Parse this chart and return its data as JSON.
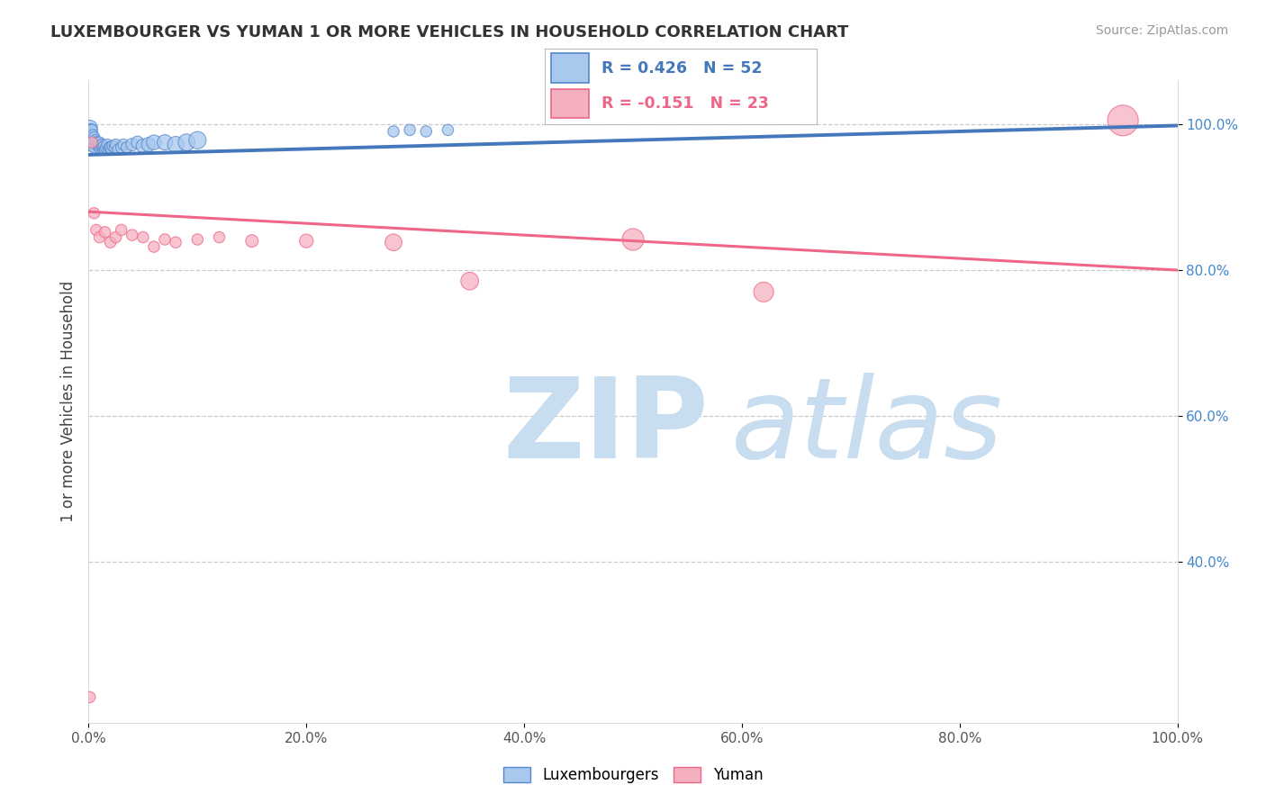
{
  "title": "LUXEMBOURGER VS YUMAN 1 OR MORE VEHICLES IN HOUSEHOLD CORRELATION CHART",
  "source_text": "Source: ZipAtlas.com",
  "ylabel": "1 or more Vehicles in Household",
  "xlim": [
    0.0,
    1.0
  ],
  "ylim": [
    0.18,
    1.06
  ],
  "xticks": [
    0.0,
    0.2,
    0.4,
    0.6,
    0.8,
    1.0
  ],
  "yticks": [
    0.4,
    0.6,
    0.8,
    1.0
  ],
  "ytick_labels": [
    "40.0%",
    "60.0%",
    "80.0%",
    "100.0%"
  ],
  "xtick_labels": [
    "0.0%",
    "20.0%",
    "40.0%",
    "60.0%",
    "80.0%",
    "100.0%"
  ],
  "blue_R": 0.426,
  "blue_N": 52,
  "pink_R": -0.151,
  "pink_N": 23,
  "blue_fill_color": "#A8C8EE",
  "pink_fill_color": "#F5B0C0",
  "blue_edge_color": "#5588CC",
  "pink_edge_color": "#EE6688",
  "blue_line_color": "#4477BB",
  "pink_line_color": "#EE6688",
  "ytick_color": "#4488CC",
  "legend_labels": [
    "Luxembourgers",
    "Yuman"
  ],
  "blue_scatter_x": [
    0.001,
    0.001,
    0.002,
    0.002,
    0.002,
    0.003,
    0.003,
    0.003,
    0.003,
    0.004,
    0.004,
    0.004,
    0.005,
    0.005,
    0.006,
    0.006,
    0.007,
    0.008,
    0.009,
    0.01,
    0.01,
    0.011,
    0.012,
    0.013,
    0.014,
    0.015,
    0.016,
    0.017,
    0.018,
    0.019,
    0.02,
    0.021,
    0.022,
    0.024,
    0.025,
    0.027,
    0.03,
    0.032,
    0.035,
    0.04,
    0.045,
    0.05,
    0.055,
    0.06,
    0.07,
    0.08,
    0.09,
    0.1,
    0.28,
    0.295,
    0.31,
    0.33
  ],
  "blue_scatter_y": [
    0.995,
    0.988,
    0.985,
    0.978,
    0.992,
    0.975,
    0.98,
    0.992,
    0.97,
    0.978,
    0.985,
    0.97,
    0.982,
    0.968,
    0.978,
    0.975,
    0.972,
    0.975,
    0.97,
    0.968,
    0.975,
    0.97,
    0.972,
    0.968,
    0.97,
    0.965,
    0.968,
    0.972,
    0.965,
    0.968,
    0.968,
    0.965,
    0.97,
    0.968,
    0.972,
    0.965,
    0.968,
    0.972,
    0.968,
    0.972,
    0.975,
    0.97,
    0.972,
    0.975,
    0.975,
    0.972,
    0.975,
    0.978,
    0.99,
    0.992,
    0.99,
    0.992
  ],
  "blue_scatter_size": [
    150,
    120,
    120,
    100,
    100,
    100,
    100,
    80,
    80,
    80,
    80,
    80,
    80,
    80,
    80,
    80,
    80,
    80,
    80,
    80,
    80,
    80,
    80,
    80,
    80,
    80,
    80,
    80,
    80,
    80,
    80,
    80,
    80,
    80,
    80,
    80,
    80,
    80,
    80,
    100,
    100,
    120,
    130,
    140,
    150,
    170,
    180,
    190,
    80,
    80,
    80,
    80
  ],
  "pink_scatter_x": [
    0.001,
    0.003,
    0.005,
    0.007,
    0.01,
    0.015,
    0.02,
    0.025,
    0.03,
    0.04,
    0.05,
    0.06,
    0.07,
    0.08,
    0.1,
    0.12,
    0.15,
    0.2,
    0.28,
    0.35,
    0.5,
    0.62,
    0.95
  ],
  "pink_scatter_y": [
    0.215,
    0.975,
    0.878,
    0.855,
    0.845,
    0.852,
    0.838,
    0.845,
    0.855,
    0.848,
    0.845,
    0.832,
    0.842,
    0.838,
    0.842,
    0.845,
    0.84,
    0.84,
    0.838,
    0.785,
    0.842,
    0.77,
    1.005
  ],
  "pink_scatter_size": [
    80,
    80,
    80,
    80,
    80,
    80,
    80,
    80,
    80,
    80,
    80,
    80,
    80,
    80,
    80,
    80,
    100,
    120,
    180,
    200,
    300,
    250,
    600
  ],
  "blue_trend_x": [
    0.0,
    1.0
  ],
  "blue_trend_y": [
    0.958,
    0.998
  ],
  "pink_trend_x": [
    0.0,
    1.0
  ],
  "pink_trend_y": [
    0.88,
    0.8
  ],
  "grid_color": "#CCCCCC",
  "background_color": "#FFFFFF",
  "watermark_zip_color": "#C8DDEF",
  "watermark_atlas_color": "#C8DDEF",
  "stats_box_border": "#BBBBBB"
}
